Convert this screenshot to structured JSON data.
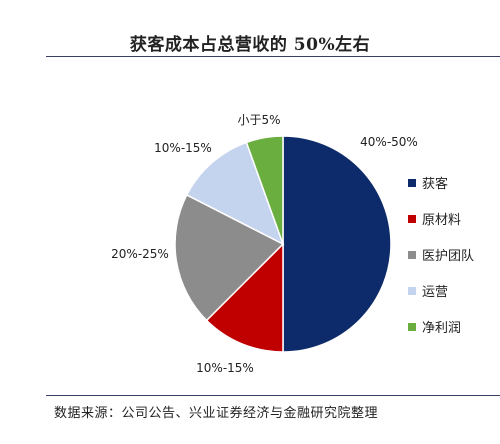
{
  "title": "获客成本占总营收的 50%左右",
  "source": "数据来源：公司公告、兴业证券经济与金融研究院整理",
  "chart_data": {
    "type": "pie",
    "title": "获客成本占总营收的 50%左右",
    "start_angle_deg": 0,
    "direction": "clockwise",
    "legend_position": "right",
    "slices": [
      {
        "name": "获客",
        "label": "40%-50%",
        "value": 50,
        "color": "#0d2a6b"
      },
      {
        "name": "原材料",
        "label": "10%-15%",
        "value": 12.5,
        "color": "#c00000"
      },
      {
        "name": "医护团队",
        "label": "20%-25%",
        "value": 20,
        "color": "#8c8c8c"
      },
      {
        "name": "运营",
        "label": "10%-15%",
        "value": 12,
        "color": "#c5d4ee"
      },
      {
        "name": "净利润",
        "label": "小于5%",
        "value": 5.5,
        "color": "#6aae3f"
      }
    ]
  }
}
